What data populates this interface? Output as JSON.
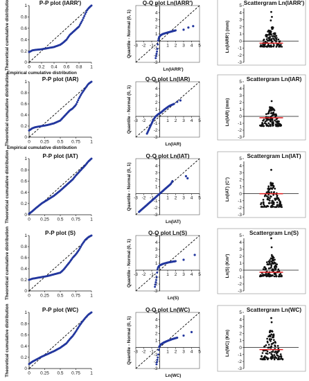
{
  "colors": {
    "points": "#23379e",
    "refline": "#000000",
    "median": "#e0191b",
    "dark": "#111111"
  },
  "pp_ticks": {
    "y": [
      "0",
      "0.2",
      "0.4",
      "0.6",
      "0.8",
      "1"
    ],
    "x_a": [
      "0",
      "0.2",
      "0.4",
      "0.6",
      "0.8",
      "1"
    ],
    "x_b": [
      "0",
      "0.25",
      "0.5",
      "0.75",
      "1"
    ]
  },
  "qq_ticks": {
    "x": [
      "-3",
      "-2",
      "-1",
      "0",
      "1",
      "2",
      "3",
      "4",
      "5"
    ],
    "y": [
      "-3",
      "-2",
      "-1",
      "0",
      "1",
      "2",
      "3",
      "4",
      "5"
    ]
  },
  "sc_ticks": {
    "y": [
      "-3",
      "-2",
      "-1",
      "0",
      "1",
      "2",
      "3",
      "4",
      "5"
    ]
  },
  "chart_data": [
    {
      "type": "scatter",
      "kind": "pp",
      "title": "P-P plot (IARR')",
      "xlabel": "Empirical cumulative distribution",
      "ylabel": "Theoretical cumulative distribution",
      "xlim": [
        0,
        1
      ],
      "ylim": [
        0,
        1
      ],
      "xticks": "a",
      "curve": [
        [
          0,
          0.18
        ],
        [
          0.05,
          0.21
        ],
        [
          0.1,
          0.22
        ],
        [
          0.2,
          0.23
        ],
        [
          0.3,
          0.25
        ],
        [
          0.4,
          0.27
        ],
        [
          0.5,
          0.31
        ],
        [
          0.55,
          0.35
        ],
        [
          0.6,
          0.4
        ],
        [
          0.65,
          0.48
        ],
        [
          0.7,
          0.53
        ],
        [
          0.75,
          0.58
        ],
        [
          0.8,
          0.63
        ],
        [
          0.85,
          0.73
        ],
        [
          0.9,
          0.85
        ],
        [
          0.93,
          0.92
        ],
        [
          0.96,
          0.96
        ],
        [
          1,
          1
        ]
      ]
    },
    {
      "type": "scatter",
      "kind": "qq",
      "title": "Q-Q plot Ln(IARR')",
      "xlabel": "Ln(IARR')",
      "ylabel": "Quantile - Normal (0, 1)",
      "xlim": [
        -3,
        5
      ],
      "ylim": [
        -3,
        5
      ],
      "curve": [
        [
          -0.5,
          -2.4
        ],
        [
          -0.4,
          -1.8
        ],
        [
          -0.3,
          -1.2
        ],
        [
          -0.25,
          -0.6
        ],
        [
          -0.2,
          0
        ],
        [
          -0.1,
          0.5
        ],
        [
          0.1,
          0.8
        ],
        [
          0.4,
          1
        ],
        [
          1,
          1.2
        ],
        [
          2,
          1.5
        ]
      ],
      "outliers": [
        [
          3,
          1.6
        ],
        [
          3.6,
          1.9
        ],
        [
          4.2,
          2.1
        ]
      ]
    },
    {
      "type": "scatter",
      "kind": "sc",
      "title": "Scattergram Ln(IARR')",
      "ylabel": "Ln(IARR') (mm)",
      "ylim": [
        -3,
        5
      ],
      "median": -0.3,
      "outliers": [
        [
          -0.05,
          2.9
        ],
        [
          0.08,
          3.4
        ],
        [
          0,
          4.1
        ]
      ],
      "lo": -0.8,
      "dense_top": 2.1
    },
    {
      "type": "scatter",
      "kind": "pp",
      "title": "P-P plot (IAR)",
      "xlabel": "Empirical cumulative distribution",
      "ylabel": "Theoretical cumulative distribution",
      "xlim": [
        0,
        1
      ],
      "ylim": [
        0,
        1
      ],
      "xticks": "b",
      "curve": [
        [
          0,
          0.12
        ],
        [
          0.05,
          0.16
        ],
        [
          0.1,
          0.18
        ],
        [
          0.2,
          0.2
        ],
        [
          0.3,
          0.22
        ],
        [
          0.4,
          0.25
        ],
        [
          0.5,
          0.3
        ],
        [
          0.55,
          0.36
        ],
        [
          0.6,
          0.42
        ],
        [
          0.65,
          0.48
        ],
        [
          0.7,
          0.52
        ],
        [
          0.75,
          0.58
        ],
        [
          0.8,
          0.7
        ],
        [
          0.85,
          0.8
        ],
        [
          0.9,
          0.88
        ],
        [
          0.95,
          0.96
        ],
        [
          1,
          1
        ]
      ]
    },
    {
      "type": "scatter",
      "kind": "qq",
      "title": "Q-Q plot Ln(IAR)",
      "xlabel": "Ln(IAR)",
      "ylabel": "Quantile - Normal (0, 1)",
      "xlim": [
        -3,
        5
      ],
      "ylim": [
        -3,
        5
      ],
      "curve": [
        [
          -1.6,
          -2.5
        ],
        [
          -1.4,
          -2
        ],
        [
          -1.2,
          -1.5
        ],
        [
          -1,
          -1
        ],
        [
          -0.8,
          -0.5
        ],
        [
          -0.5,
          0
        ],
        [
          -0.2,
          0.3
        ],
        [
          0.2,
          0.6
        ],
        [
          0.6,
          1
        ],
        [
          1.2,
          1.5
        ],
        [
          1.8,
          1.8
        ]
      ],
      "outliers": [
        [
          2.2,
          2.1
        ],
        [
          2.6,
          2.3
        ]
      ]
    },
    {
      "type": "scatter",
      "kind": "sc",
      "title": "Scattergram Ln(IAR)",
      "ylabel": "Ln(IAR) (mm)",
      "ylim": [
        -3,
        5
      ],
      "median": -0.2,
      "outliers": [
        [
          0.05,
          2.2
        ]
      ],
      "lo": -1.4,
      "dense_top": 1.4
    },
    {
      "type": "scatter",
      "kind": "pp",
      "title": "P-P plot (IAT)",
      "xlabel": "",
      "ylabel": "Theoretical cumulative distribution",
      "xlim": [
        0,
        1
      ],
      "ylim": [
        0,
        1
      ],
      "xticks": "b",
      "curve": [
        [
          0,
          0.02
        ],
        [
          0.05,
          0.06
        ],
        [
          0.1,
          0.11
        ],
        [
          0.2,
          0.2
        ],
        [
          0.3,
          0.27
        ],
        [
          0.4,
          0.34
        ],
        [
          0.5,
          0.43
        ],
        [
          0.6,
          0.53
        ],
        [
          0.7,
          0.63
        ],
        [
          0.75,
          0.7
        ],
        [
          0.8,
          0.76
        ],
        [
          0.85,
          0.82
        ],
        [
          0.9,
          0.88
        ],
        [
          0.95,
          0.95
        ],
        [
          1,
          1
        ]
      ]
    },
    {
      "type": "scatter",
      "kind": "qq",
      "title": "Q-Q plot Ln(IAT)",
      "xlabel": "Ln(IAT)",
      "ylabel": "Quantile - Normal (0, 1)",
      "xlim": [
        -3,
        5
      ],
      "ylim": [
        -3,
        5
      ],
      "curve": [
        [
          -2.6,
          -2.6
        ],
        [
          -2,
          -2
        ],
        [
          -1.5,
          -1.5
        ],
        [
          -1,
          -1
        ],
        [
          -0.5,
          -0.5
        ],
        [
          0,
          0
        ],
        [
          0.5,
          0.5
        ],
        [
          1,
          1
        ],
        [
          1.4,
          1.4
        ],
        [
          1.6,
          1.8
        ]
      ],
      "outliers": [
        [
          3.3,
          2.5
        ],
        [
          3.5,
          2.2
        ]
      ]
    },
    {
      "type": "scatter",
      "kind": "sc",
      "title": "Scattergram Ln(IAT)",
      "ylabel": "Ln(IAT) (C°)",
      "ylim": [
        -3,
        5
      ],
      "median": 0,
      "outliers": [
        [
          0,
          3.4
        ]
      ],
      "lo": -1.9,
      "dense_top": 1.6
    },
    {
      "type": "scatter",
      "kind": "pp",
      "title": "P-P plot (S)",
      "xlabel": "",
      "ylabel": "Theoretical cumulative distribution",
      "xlim": [
        0,
        1
      ],
      "ylim": [
        0,
        1
      ],
      "xticks": "b",
      "curve": [
        [
          0,
          0.2
        ],
        [
          0.05,
          0.22
        ],
        [
          0.1,
          0.23
        ],
        [
          0.2,
          0.25
        ],
        [
          0.3,
          0.27
        ],
        [
          0.4,
          0.3
        ],
        [
          0.5,
          0.33
        ],
        [
          0.55,
          0.38
        ],
        [
          0.6,
          0.45
        ],
        [
          0.65,
          0.52
        ],
        [
          0.7,
          0.6
        ],
        [
          0.75,
          0.66
        ],
        [
          0.8,
          0.74
        ],
        [
          0.85,
          0.84
        ],
        [
          0.9,
          0.92
        ],
        [
          0.95,
          0.97
        ],
        [
          1,
          1
        ]
      ]
    },
    {
      "type": "scatter",
      "kind": "qq",
      "title": "Q-Q plot Ln(S)",
      "xlabel": "Ln(S)",
      "ylabel": "Quantile - Normal (0, 1)",
      "xlim": [
        -3,
        5
      ],
      "ylim": [
        -3,
        5
      ],
      "curve": [
        [
          -0.6,
          -2.4
        ],
        [
          -0.5,
          -1.8
        ],
        [
          -0.4,
          -1.2
        ],
        [
          -0.35,
          -0.6
        ],
        [
          -0.3,
          0
        ],
        [
          -0.2,
          0.4
        ],
        [
          0,
          0.7
        ],
        [
          0.4,
          0.9
        ],
        [
          1,
          1.1
        ],
        [
          2,
          1.3
        ]
      ],
      "outliers": [
        [
          3,
          1.5
        ],
        [
          4.4,
          2.2
        ]
      ]
    },
    {
      "type": "scatter",
      "kind": "sc",
      "title": "Scattergram Ln(S)",
      "ylabel": "Ln(S) (Km²)",
      "ylim": [
        -3,
        5
      ],
      "median": -0.3,
      "outliers": [
        [
          0.05,
          3.3
        ],
        [
          0,
          4.6
        ]
      ],
      "lo": -0.9,
      "dense_top": 2.2
    },
    {
      "type": "scatter",
      "kind": "pp",
      "title": "P-P plot (WC)",
      "xlabel": "",
      "ylabel": "Theoretical cumulative distribution",
      "xlim": [
        0,
        1
      ],
      "ylim": [
        0,
        1
      ],
      "xticks": "b",
      "curve": [
        [
          0,
          0.08
        ],
        [
          0.05,
          0.12
        ],
        [
          0.1,
          0.15
        ],
        [
          0.2,
          0.21
        ],
        [
          0.3,
          0.26
        ],
        [
          0.4,
          0.31
        ],
        [
          0.5,
          0.37
        ],
        [
          0.6,
          0.45
        ],
        [
          0.65,
          0.52
        ],
        [
          0.7,
          0.58
        ],
        [
          0.75,
          0.66
        ],
        [
          0.8,
          0.75
        ],
        [
          0.85,
          0.83
        ],
        [
          0.9,
          0.9
        ],
        [
          0.95,
          0.96
        ],
        [
          1,
          1
        ]
      ]
    },
    {
      "type": "scatter",
      "kind": "qq",
      "title": "Q-Q plot Ln(WC)",
      "xlabel": "Ln(WC)",
      "ylabel": "Quantile - Normal (0, 1)",
      "xlim": [
        -3,
        5
      ],
      "ylim": [
        -3,
        5
      ],
      "curve": [
        [
          -0.4,
          -2.4
        ],
        [
          -0.3,
          -1.8
        ],
        [
          -0.2,
          -1.2
        ],
        [
          -0.15,
          -0.6
        ],
        [
          -0.1,
          0
        ],
        [
          0.1,
          0.4
        ],
        [
          0.5,
          0.7
        ],
        [
          1,
          0.95
        ],
        [
          1.6,
          1.2
        ],
        [
          2.2,
          1.4
        ]
      ],
      "outliers": [
        [
          3,
          1.7
        ],
        [
          4,
          2.2
        ]
      ]
    },
    {
      "type": "scatter",
      "kind": "sc",
      "title": "Scattergram Ln(WC)",
      "ylabel": "Ln(WC) (Km)",
      "ylim": [
        -3,
        5
      ],
      "median": -0.3,
      "outliers": [
        [
          0.05,
          3.6
        ],
        [
          0,
          4.2
        ]
      ],
      "lo": -1.7,
      "dense_top": 2.4
    }
  ]
}
